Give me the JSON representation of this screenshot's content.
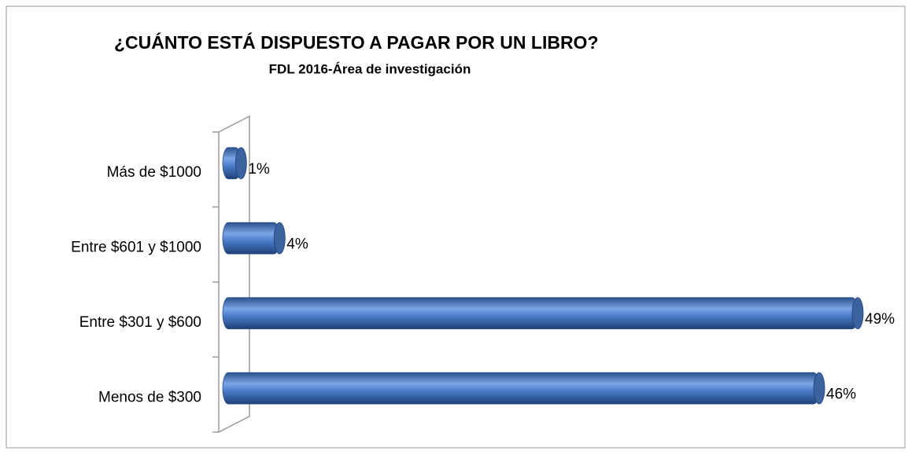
{
  "chart_data": {
    "type": "bar",
    "orientation": "horizontal",
    "title": "¿CUÁNTO ESTÁ DISPUESTO A PAGAR POR UN LIBRO?",
    "subtitle": "FDL 2016-Área de investigación",
    "categories": [
      "Más de $1000",
      "Entre $601 y $1000",
      "Entre $301 y $600",
      "Menos de $300"
    ],
    "values": [
      1,
      4,
      49,
      46
    ],
    "value_labels": [
      "1%",
      "4%",
      "49%",
      "46%"
    ],
    "color": "#4a7bc8"
  }
}
